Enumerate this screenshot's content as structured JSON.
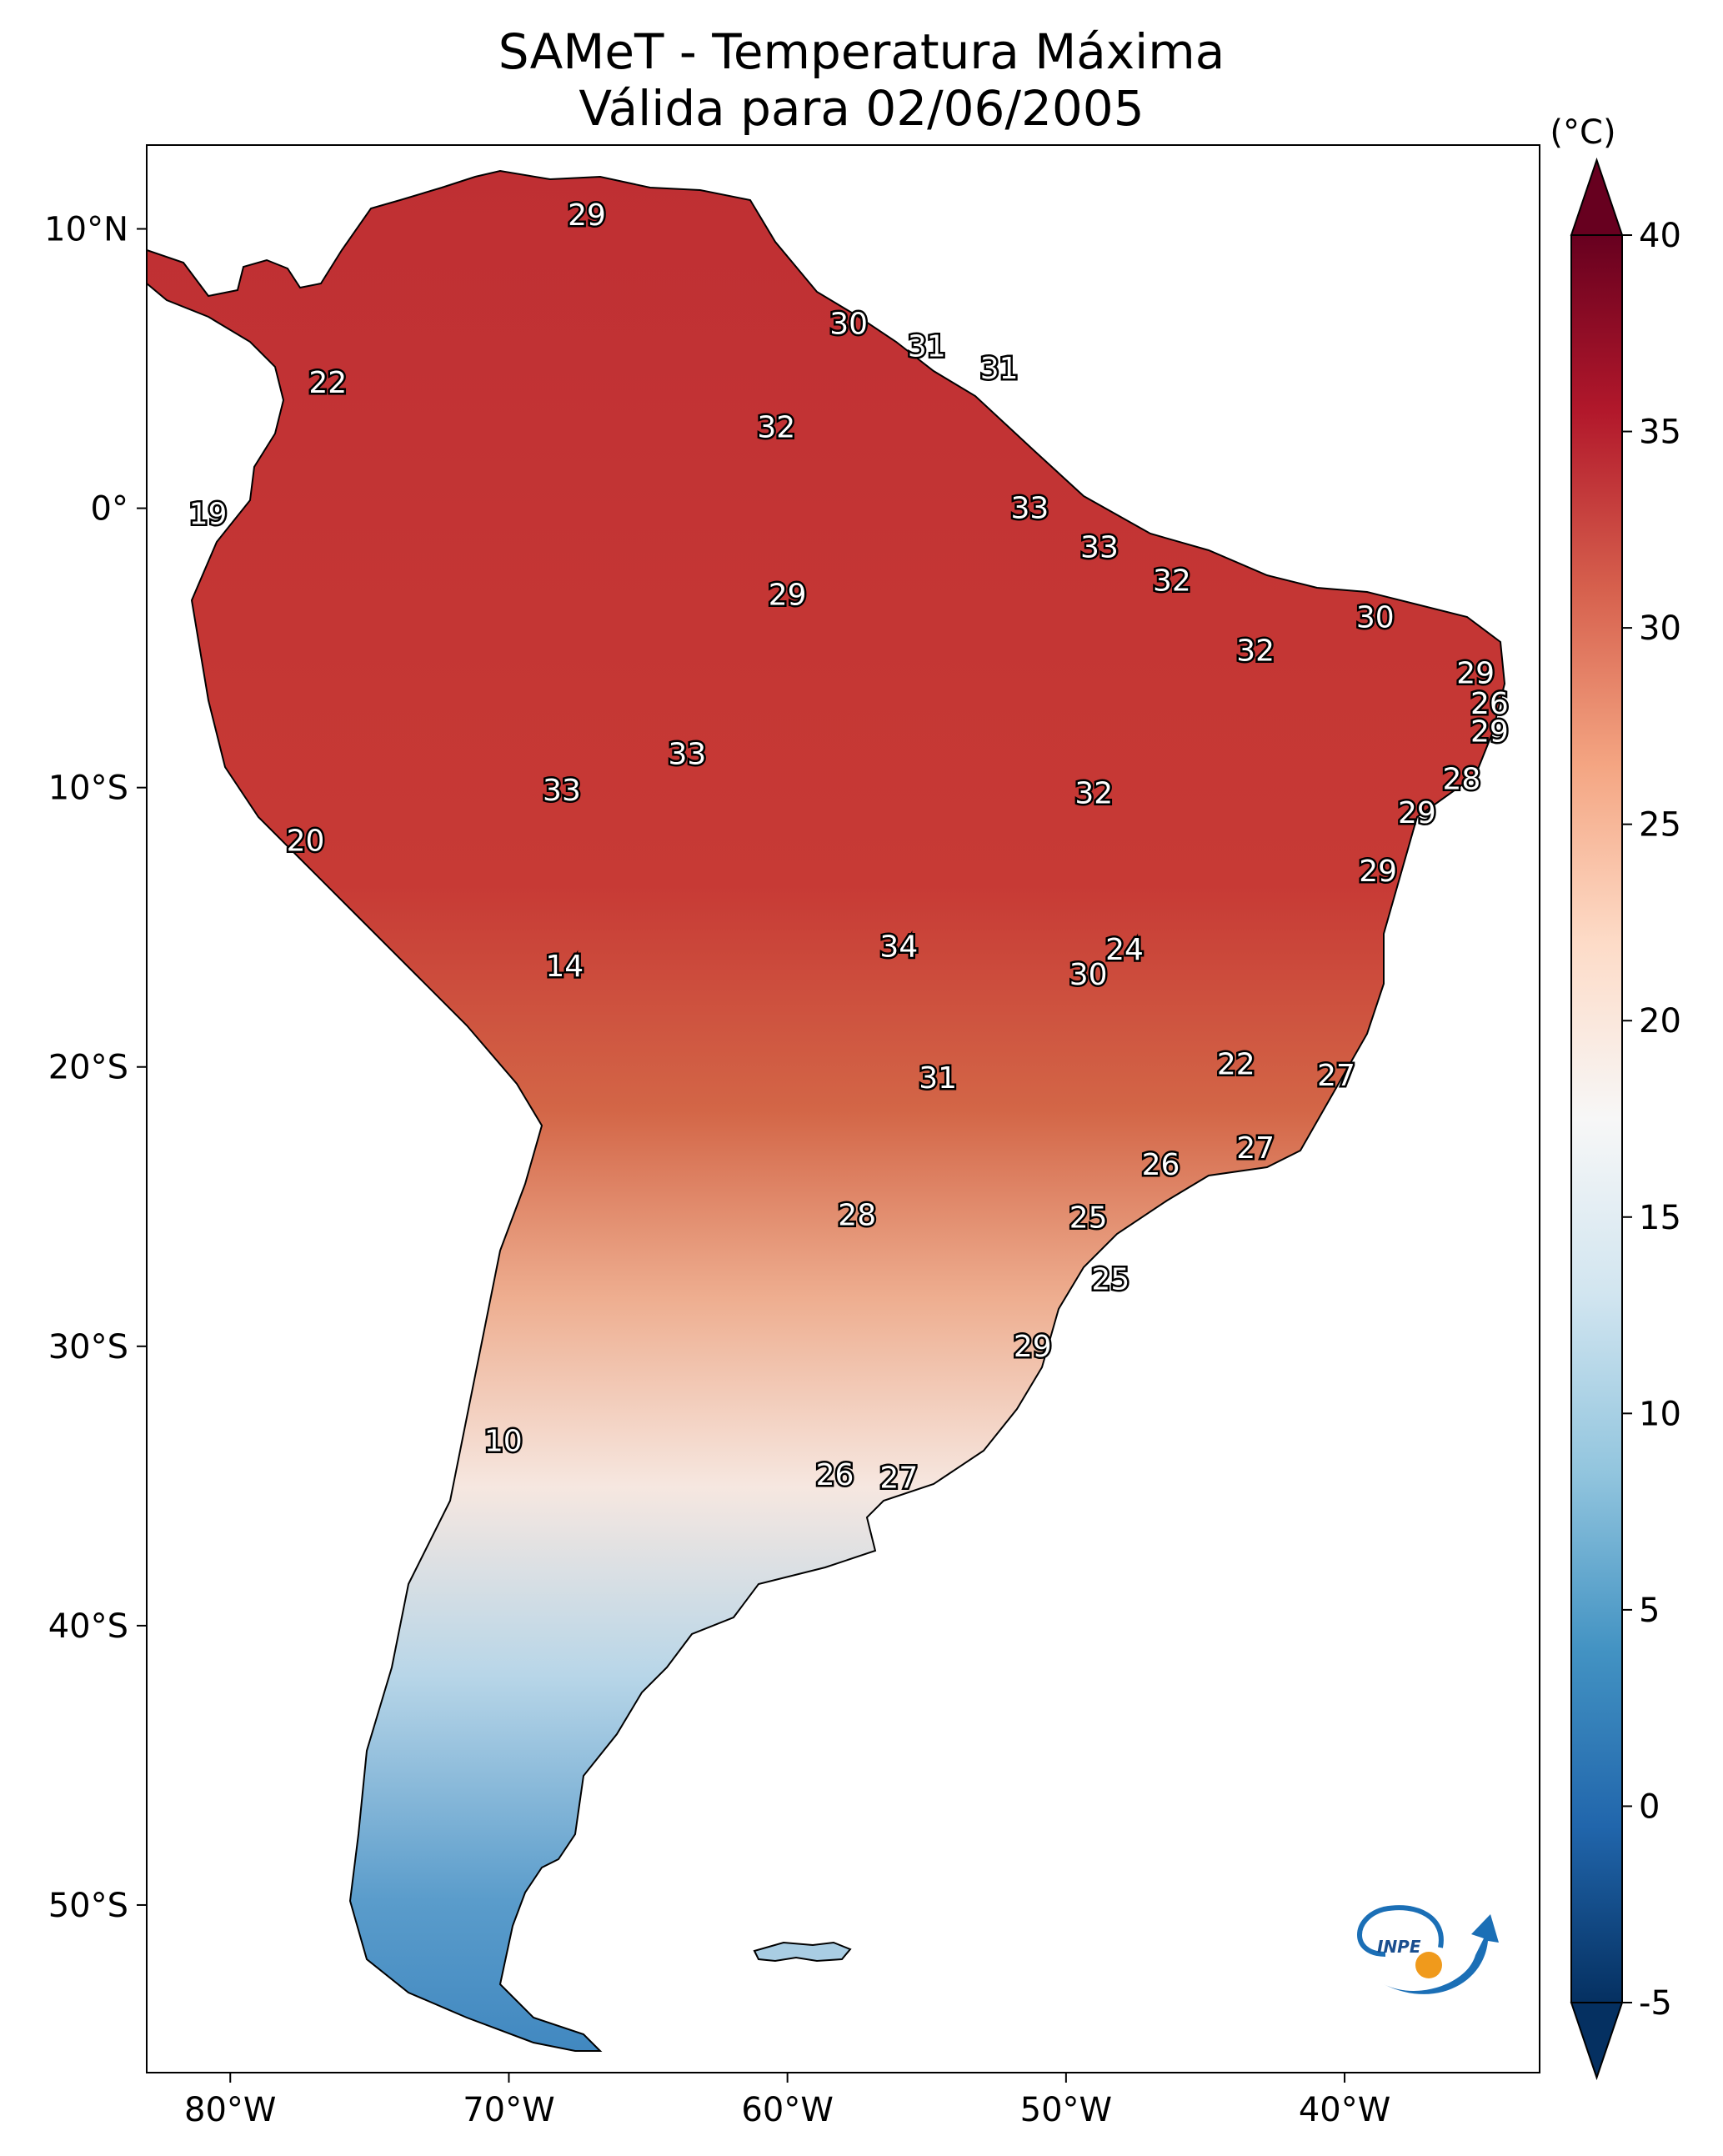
{
  "title_line1": "SAMeT - Temperatura Máxima",
  "title_line2": "Válida para 02/06/2005",
  "colorbar": {
    "unit_label": "(°C)",
    "min": -5,
    "max": 40,
    "ticks": [
      "40",
      "35",
      "30",
      "25",
      "20",
      "15",
      "10",
      "5",
      "0",
      "-5"
    ],
    "tick_values": [
      40,
      35,
      30,
      25,
      20,
      15,
      10,
      5,
      0,
      -5
    ],
    "colors": [
      "#053061",
      "#2166ac",
      "#4393c3",
      "#92c5de",
      "#d1e5f0",
      "#f7f7f7",
      "#fddbc7",
      "#f4a582",
      "#d6604d",
      "#b2182b",
      "#67001f"
    ]
  },
  "axes": {
    "lon_labels": [
      "80°W",
      "70°W",
      "60°W",
      "50°W",
      "40°W"
    ],
    "lon_values": [
      -80,
      -70,
      -60,
      -50,
      -40
    ],
    "lat_labels": [
      "10°N",
      "0°",
      "10°S",
      "20°S",
      "30°S",
      "40°S",
      "50°S"
    ],
    "lat_values": [
      10,
      0,
      -10,
      -20,
      -30,
      -40,
      -50
    ],
    "lon_range": [
      -83,
      -33
    ],
    "lat_range": [
      13,
      -56
    ]
  },
  "station_labels": [
    {
      "text": "29",
      "lon": -67.2,
      "lat": 10.5
    },
    {
      "text": "30",
      "lon": -57.8,
      "lat": 6.6
    },
    {
      "text": "31",
      "lon": -55.0,
      "lat": 5.8
    },
    {
      "text": "31",
      "lon": -52.4,
      "lat": 5.0
    },
    {
      "text": "22",
      "lon": -76.5,
      "lat": 4.5
    },
    {
      "text": "32",
      "lon": -60.4,
      "lat": 2.9
    },
    {
      "text": "19",
      "lon": -80.8,
      "lat": -0.2
    },
    {
      "text": "33",
      "lon": -51.3,
      "lat": 0.0
    },
    {
      "text": "33",
      "lon": -48.8,
      "lat": -1.4
    },
    {
      "text": "32",
      "lon": -46.2,
      "lat": -2.6
    },
    {
      "text": "29",
      "lon": -60.0,
      "lat": -3.1
    },
    {
      "text": "30",
      "lon": -38.9,
      "lat": -3.9
    },
    {
      "text": "32",
      "lon": -43.2,
      "lat": -5.1
    },
    {
      "text": "29",
      "lon": -35.3,
      "lat": -5.9
    },
    {
      "text": "26",
      "lon": -34.8,
      "lat": -7.0
    },
    {
      "text": "29",
      "lon": -34.8,
      "lat": -8.0
    },
    {
      "text": "33",
      "lon": -63.6,
      "lat": -8.8
    },
    {
      "text": "28",
      "lon": -35.8,
      "lat": -9.7
    },
    {
      "text": "33",
      "lon": -68.1,
      "lat": -10.1
    },
    {
      "text": "32",
      "lon": -49.0,
      "lat": -10.2
    },
    {
      "text": "29",
      "lon": -37.4,
      "lat": -10.9
    },
    {
      "text": "20",
      "lon": -77.3,
      "lat": -11.9
    },
    {
      "text": "29",
      "lon": -38.8,
      "lat": -13.0
    },
    {
      "text": "34",
      "lon": -56.0,
      "lat": -15.7
    },
    {
      "text": "24",
      "lon": -47.9,
      "lat": -15.8
    },
    {
      "text": "30",
      "lon": -49.2,
      "lat": -16.7
    },
    {
      "text": "14",
      "lon": -68.0,
      "lat": -16.4
    },
    {
      "text": "22",
      "lon": -43.9,
      "lat": -19.9
    },
    {
      "text": "27",
      "lon": -40.3,
      "lat": -20.3
    },
    {
      "text": "31",
      "lon": -54.6,
      "lat": -20.4
    },
    {
      "text": "27",
      "lon": -43.2,
      "lat": -22.9
    },
    {
      "text": "26",
      "lon": -46.6,
      "lat": -23.5
    },
    {
      "text": "28",
      "lon": -57.5,
      "lat": -25.3
    },
    {
      "text": "25",
      "lon": -49.2,
      "lat": -25.4
    },
    {
      "text": "25",
      "lon": -48.4,
      "lat": -27.6
    },
    {
      "text": "29",
      "lon": -51.2,
      "lat": -30.0
    },
    {
      "text": "10",
      "lon": -70.2,
      "lat": -33.4
    },
    {
      "text": "26",
      "lon": -58.3,
      "lat": -34.6
    },
    {
      "text": "27",
      "lon": -56.0,
      "lat": -34.7
    }
  ],
  "logo_text": "INPE"
}
